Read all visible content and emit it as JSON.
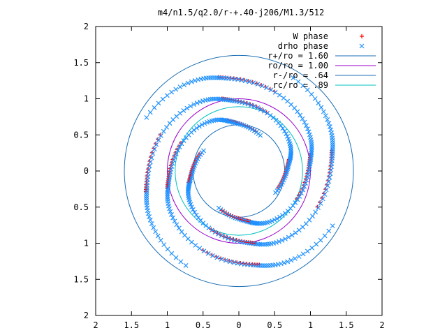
{
  "chart_data": {
    "type": "scatter",
    "title": "m4/n1.5/q2.0/r-+.40-j206/M1.3/512",
    "xlabel": "",
    "ylabel": "",
    "xlim": [
      -2,
      2
    ],
    "ylim": [
      -2,
      2
    ],
    "x_ticks": [
      "2",
      "1.5",
      "1",
      "0.5",
      "0",
      "0.5",
      "1",
      "1.5",
      "2"
    ],
    "y_ticks": [
      "2",
      "1.5",
      "1",
      "0.5",
      "0",
      "0.5",
      "1",
      "1.5",
      "2"
    ],
    "grid": false,
    "legend_position": "top-right",
    "colors": {
      "w_phase": "#ff0000",
      "drho_phase": "#1e90ff",
      "circle_r_plus": "#1a6eb5",
      "circle_ro": "#9900cc",
      "circle_r_minus": "#1a6eb5",
      "circle_rc": "#00c0c0"
    },
    "legend": [
      {
        "label": "W phase",
        "kind": "point",
        "marker": "plus",
        "color": "#ff0000"
      },
      {
        "label": "drho phase",
        "kind": "point",
        "marker": "cross",
        "color": "#1e90ff"
      },
      {
        "label": "r+/ro = 1.60",
        "kind": "line",
        "color": "#1a6eb5"
      },
      {
        "label": "ro/ro = 1.00",
        "kind": "line",
        "color": "#9900cc"
      },
      {
        "label": "r-/ro = .64",
        "kind": "line",
        "color": "#1a6eb5"
      },
      {
        "label": "rc/ro = .89",
        "kind": "line",
        "color": "#00c0c0"
      }
    ],
    "circles": [
      {
        "name": "r+/ro",
        "radius": 1.6
      },
      {
        "name": "ro/ro",
        "radius": 1.0
      },
      {
        "name": "r-/ro",
        "radius": 0.64
      },
      {
        "name": "rc/ro",
        "radius": 0.89
      }
    ],
    "spiral_arms": {
      "count": 4,
      "r_min": 0.58,
      "r_max": 1.5,
      "angle_start_deg": [
        -30,
        60,
        150,
        240
      ],
      "winding_deg": 270
    }
  }
}
